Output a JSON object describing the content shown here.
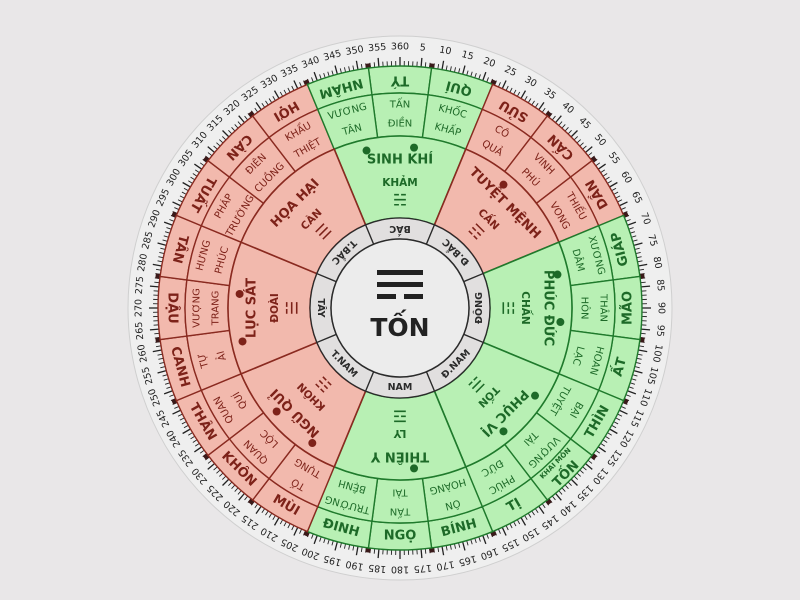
{
  "compass": {
    "center": {
      "label": "TỐN",
      "trigram": "☴"
    },
    "degree_scale": {
      "start": 5,
      "end": 360,
      "step": 5
    },
    "directions": [
      {
        "label": "BẮC",
        "bearing": 0
      },
      {
        "label": "Đ.BẮC",
        "bearing": 45
      },
      {
        "label": "ĐÔNG",
        "bearing": 90
      },
      {
        "label": "Đ.NAM",
        "bearing": 135
      },
      {
        "label": "NAM",
        "bearing": 180
      },
      {
        "label": "T.NAM",
        "bearing": 225
      },
      {
        "label": "TÂY",
        "bearing": 270
      },
      {
        "label": "T.BẮC",
        "bearing": 315
      }
    ],
    "sectors": [
      {
        "star": "SINH KHÍ",
        "trigram_name": "KHẢM",
        "trigram": "☵",
        "quality": "good",
        "bearing": 0,
        "dots": 2
      },
      {
        "star": "TUYỆT MỆNH",
        "trigram_name": "CẤN",
        "trigram": "☶",
        "quality": "bad",
        "bearing": 45,
        "dots": 1
      },
      {
        "star": "PHÚC ĐỨC",
        "trigram_name": "CHẤN",
        "trigram": "☳",
        "quality": "good",
        "bearing": 90,
        "dots": 2
      },
      {
        "star": "PHỤC VỊ",
        "trigram_name": "TỐN",
        "trigram": "☴",
        "quality": "good",
        "bearing": 135,
        "dots": 2
      },
      {
        "star": "THIÊN Y",
        "trigram_name": "LY",
        "trigram": "☲",
        "quality": "good",
        "bearing": 180,
        "dots": 1
      },
      {
        "star": "NGŨ QUỈ",
        "trigram_name": "KHÔN",
        "trigram": "☷",
        "quality": "bad",
        "bearing": 225,
        "dots": 2
      },
      {
        "star": "LỤC SÁT",
        "trigram_name": "ĐOÀI",
        "trigram": "☱",
        "quality": "bad",
        "bearing": 270,
        "dots": 2
      },
      {
        "star": "HỌA HẠI",
        "trigram_name": "CÀN",
        "trigram": "☰",
        "quality": "bad",
        "bearing": 315,
        "dots": 0
      }
    ],
    "mountains": [
      {
        "name": "TÝ",
        "bearing": 0,
        "stars": [
          "TẤN",
          "ĐIỀN"
        ]
      },
      {
        "name": "QUÍ",
        "bearing": 15,
        "stars": [
          "KHỐC",
          "KHẤP"
        ]
      },
      {
        "name": "SỬU",
        "bearing": 30,
        "stars": [
          "CÔ",
          "QUẢ"
        ]
      },
      {
        "name": "CẤN",
        "bearing": 45,
        "stars": [
          "VINH",
          "PHÚ"
        ]
      },
      {
        "name": "DẦN",
        "bearing": 60,
        "stars": [
          "THIẾU",
          "VONG"
        ]
      },
      {
        "name": "GIÁP",
        "bearing": 75,
        "stars": [
          "XƯƠNG",
          "DÂM"
        ]
      },
      {
        "name": "MÃO",
        "bearing": 90,
        "stars": [
          "THÂN",
          "HÔN"
        ]
      },
      {
        "name": "ẤT",
        "bearing": 105,
        "stars": [
          "HOAN",
          "LẠC"
        ]
      },
      {
        "name": "THÌN",
        "bearing": 120,
        "stars": [
          "BẠI",
          "TUYỆT"
        ]
      },
      {
        "name": "TỐN",
        "bearing": 135,
        "stars": [
          "VƯỢNG",
          "TÀI"
        ],
        "note": "KHAI MÔN"
      },
      {
        "name": "TỊ",
        "bearing": 150,
        "stars": [
          "PHÚC",
          "ĐỨC"
        ]
      },
      {
        "name": "BÍNH",
        "bearing": 165,
        "stars": [
          "ÔN",
          "HOÀNG"
        ]
      },
      {
        "name": "NGỌ",
        "bearing": 180,
        "stars": [
          "TẤN",
          "TÀI"
        ]
      },
      {
        "name": "ĐINH",
        "bearing": 195,
        "stars": [
          "TRƯỜNG",
          "BỆNH"
        ]
      },
      {
        "name": "MÙI",
        "bearing": 210,
        "stars": [
          "TỐ",
          "TỤNG"
        ]
      },
      {
        "name": "KHÔN",
        "bearing": 225,
        "stars": [
          "QUAN",
          "LỘC"
        ]
      },
      {
        "name": "THÂN",
        "bearing": 240,
        "stars": [
          "QUAN",
          "QUÍ"
        ]
      },
      {
        "name": "CANH",
        "bearing": 255,
        "stars": [
          "TỰ",
          "ẢI"
        ]
      },
      {
        "name": "DẬU",
        "bearing": 270,
        "stars": [
          "VƯỢNG",
          "TRANG"
        ]
      },
      {
        "name": "TÂN",
        "bearing": 285,
        "stars": [
          "HƯNG",
          "PHÚC"
        ]
      },
      {
        "name": "TUẤT",
        "bearing": 300,
        "stars": [
          "PHÁP",
          "TRƯỜNG"
        ]
      },
      {
        "name": "CÀN",
        "bearing": 315,
        "stars": [
          "ĐIÊN",
          "CUỒNG"
        ]
      },
      {
        "name": "HỢI",
        "bearing": 330,
        "stars": [
          "KHẨU",
          "THIỆT"
        ]
      },
      {
        "name": "NHÂM",
        "bearing": 345,
        "stars": [
          "VƯƠNG",
          "TÂN"
        ]
      }
    ]
  },
  "colors": {
    "good_fill": "#b8f0b4",
    "good_line": "#1f7a2c",
    "good_text": "#1d6a28",
    "bad_fill": "#f2b9ad",
    "bad_line": "#8a2a20",
    "bad_text": "#7d2219",
    "direction_fill": "#e1dfdf",
    "center_fill": "#ececec",
    "scale_fill": "#efefef",
    "background": "#e9e7e8"
  }
}
